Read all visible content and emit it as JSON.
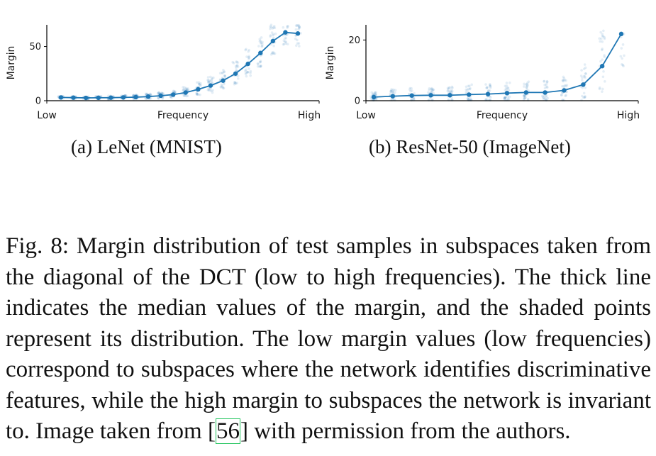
{
  "chart_data": [
    {
      "type": "scatter",
      "subcaption": "(a) LeNet (MNIST)",
      "xlabel": "Frequency",
      "ylabel": "Margin",
      "xtick_left": "Low",
      "xtick_right": "High",
      "yticks": [
        0,
        50
      ],
      "ylim": [
        0,
        70
      ],
      "median_color": "#1f77b4",
      "median": [
        3.0,
        2.8,
        2.6,
        2.7,
        2.8,
        3.0,
        3.3,
        3.8,
        4.6,
        5.6,
        7.5,
        10.5,
        14.0,
        18.5,
        25.0,
        34.0,
        44.0,
        55.0,
        63.0,
        62.0
      ],
      "spread": [
        2,
        2,
        2,
        2.5,
        3,
        3.5,
        4,
        5,
        6,
        7,
        9,
        12,
        15,
        18,
        22,
        26,
        28,
        28,
        27,
        26
      ]
    },
    {
      "type": "scatter",
      "subcaption": "(b) ResNet-50 (ImageNet)",
      "xlabel": "Frequency",
      "ylabel": "Margin",
      "xtick_left": "Low",
      "xtick_right": "High",
      "yticks": [
        0,
        20
      ],
      "ylim": [
        0,
        25
      ],
      "median_color": "#1f77b4",
      "median": [
        1.2,
        1.5,
        1.7,
        1.8,
        1.8,
        2.0,
        2.2,
        2.5,
        2.7,
        2.7,
        3.4,
        5.3,
        11.4,
        22.0
      ],
      "spread": [
        3,
        4,
        4.5,
        5,
        5.5,
        6,
        6,
        6.5,
        7,
        7,
        9,
        14,
        22,
        24
      ]
    }
  ],
  "caption": {
    "main": "Fig. 8: Margin distribution of test samples in subspaces taken from the diagonal of the DCT (low to high frequencies). The thick line indicates the median values of the margin, and the shaded points represent its distribution. The low margin values (low frequencies) correspond to subspaces where the network identifies discriminative features, while the high margin to subspaces the network is invariant to. Image taken from [",
    "cite": "56",
    "end": "] with permission from the authors."
  }
}
